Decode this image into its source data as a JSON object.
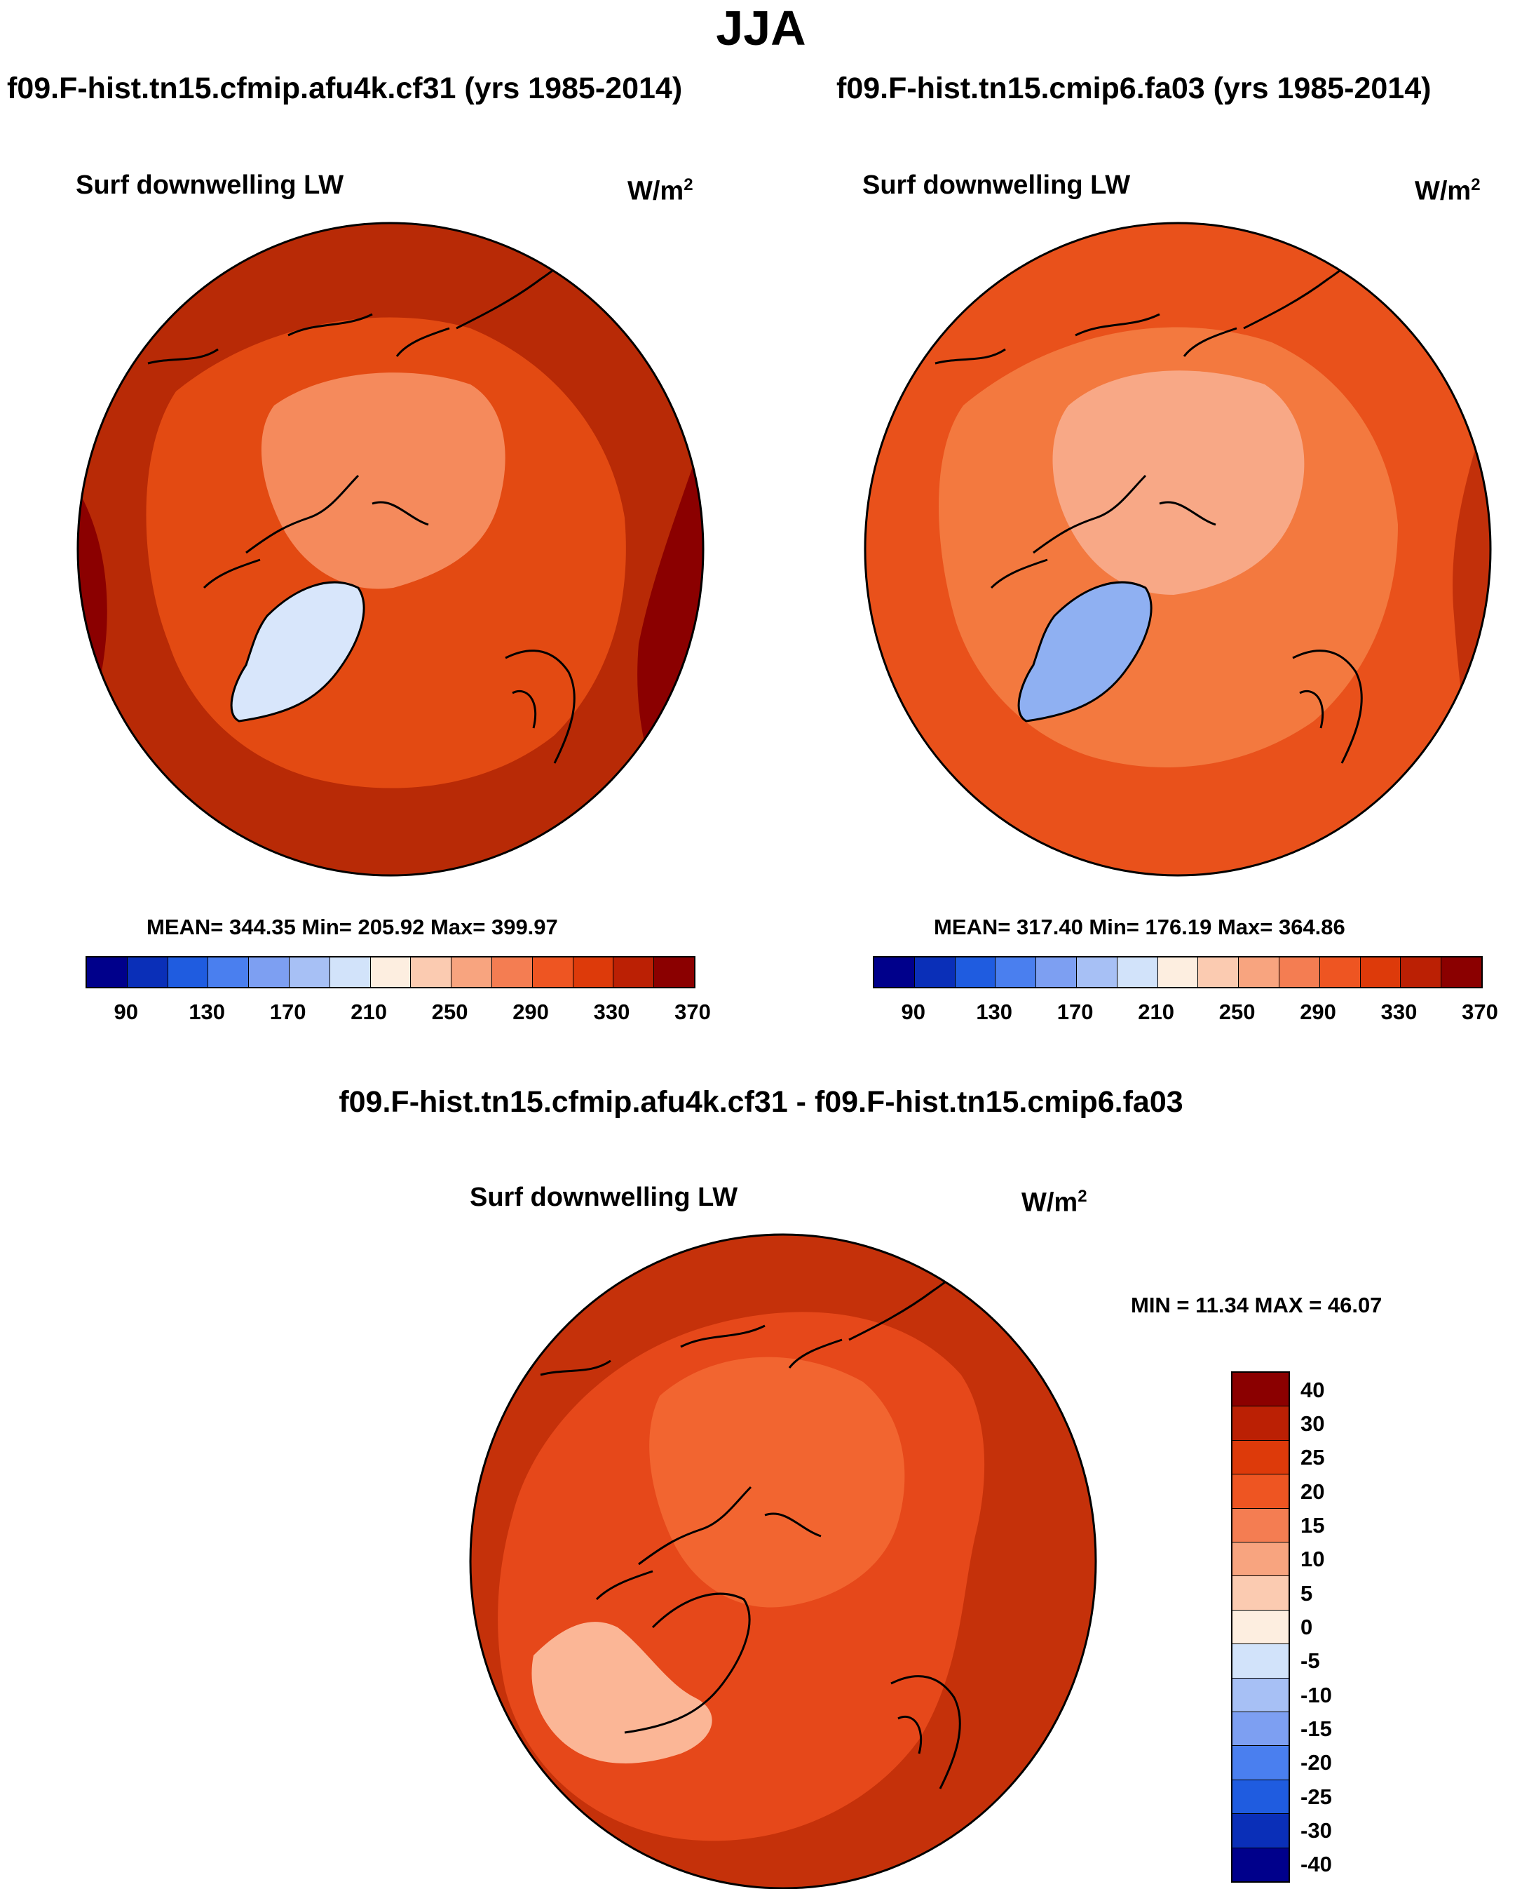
{
  "season": "JJA",
  "panels": [
    {
      "case_title": "f09.F-hist.tn15.cfmip.afu4k.cf31 (yrs 1985-2014)",
      "variable": "Surf downwelling LW",
      "units": "W/m",
      "units_exp": "2",
      "stats": "MEAN= 344.35  Min= 205.92  Max= 399.97"
    },
    {
      "case_title": "f09.F-hist.tn15.cmip6.fa03 (yrs 1985-2014)",
      "variable": "Surf downwelling LW",
      "units": "W/m",
      "units_exp": "2",
      "stats": "MEAN= 317.40  Min= 176.19  Max= 364.86"
    }
  ],
  "abs_colorbar": {
    "colors": [
      "#00008b",
      "#0a2fb8",
      "#1f5ce0",
      "#4a7fef",
      "#7d9ff2",
      "#a7c0f5",
      "#d2e3fa",
      "#fdeee0",
      "#fbcbb1",
      "#f8a47f",
      "#f47d52",
      "#ee5522",
      "#dd3a0a",
      "#bb2004",
      "#8b0000"
    ],
    "tick_labels": [
      "90",
      "130",
      "170",
      "210",
      "250",
      "290",
      "330",
      "370"
    ]
  },
  "diff": {
    "title": "f09.F-hist.tn15.cfmip.afu4k.cf31 - f09.F-hist.tn15.cmip6.fa03",
    "variable": "Surf downwelling LW",
    "units": "W/m",
    "units_exp": "2",
    "minmax": "MIN =  11.34 MAX =  46.07",
    "colorbar": {
      "colors_top_to_bottom": [
        "#8b0000",
        "#bb2004",
        "#dd3a0a",
        "#ee5522",
        "#f47d52",
        "#f8a47f",
        "#fbcbb1",
        "#fdeee0",
        "#d2e3fa",
        "#a7c0f5",
        "#7d9ff2",
        "#4a7fef",
        "#1f5ce0",
        "#0a2fb8",
        "#00008b"
      ],
      "tick_labels": [
        "40",
        "30",
        "25",
        "20",
        "15",
        "10",
        "5",
        "0",
        "-5",
        "-10",
        "-15",
        "-20",
        "-25",
        "-30",
        "-40"
      ]
    }
  },
  "map_fill_colors": {
    "panel1_outer": "#b82a06",
    "panel1_edge": "#8b0000",
    "panel1_mid": "#e34a12",
    "panel1_inner": "#f58a5c",
    "panel1_greenland": "#d8e6fb",
    "panel2_outer": "#e9511b",
    "panel2_edge": "#c2300a",
    "panel2_mid": "#f3793f",
    "panel2_inner": "#f8a886",
    "panel2_greenland": "#8fb0f2",
    "diff_outer": "#c5310a",
    "diff_mid": "#e6481a",
    "diff_inner": "#f26530",
    "diff_greenland": "#fbb696"
  }
}
